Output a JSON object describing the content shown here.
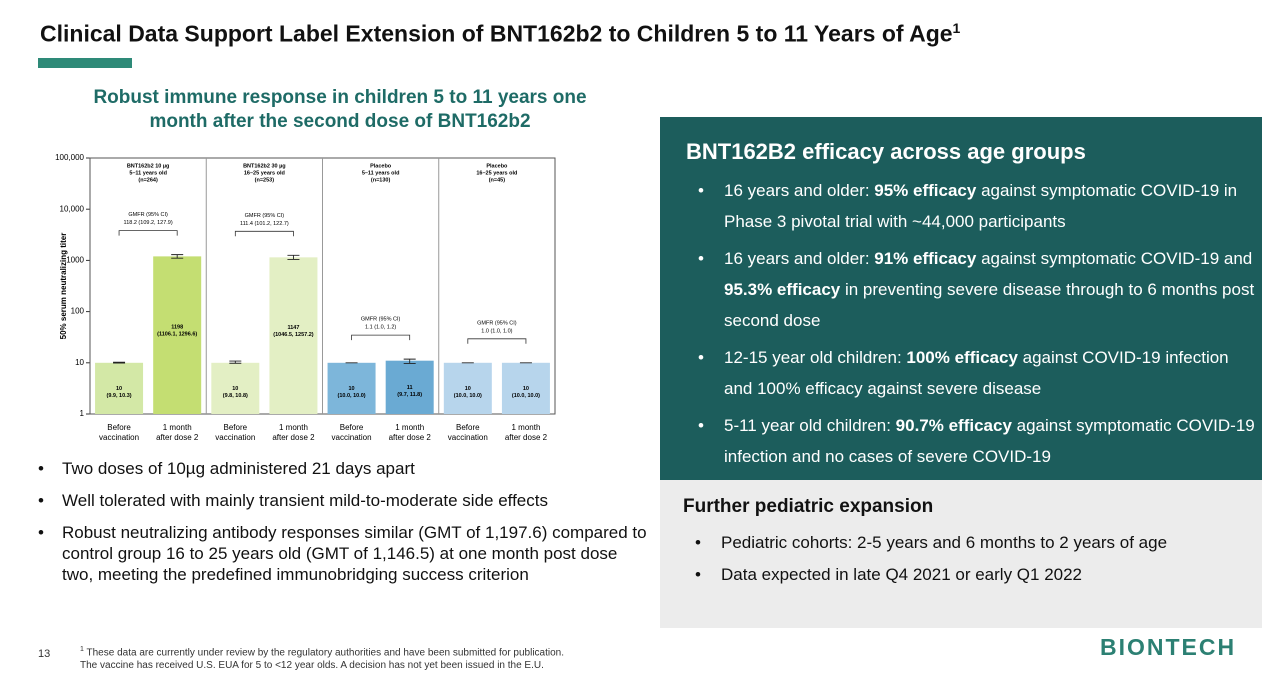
{
  "header": {
    "title": "Clinical Data Support Label Extension of BNT162b2 to Children 5 to 11 Years of Age",
    "title_sup": "1"
  },
  "left": {
    "subtitle": [
      "Robust immune response in children 5 to 11 years one",
      "month after the second dose of BNT162b2"
    ],
    "bullets": [
      "Two doses of 10µg administered 21 days apart",
      "Well tolerated with mainly transient mild-to-moderate side effects",
      "Robust neutralizing antibody responses similar (GMT of 1,197.6) compared to control group 16 to 25 years old (GMT of 1,146.5) at one month post dose two, meeting the predefined immunobridging success criterion"
    ]
  },
  "chart_data": {
    "type": "bar",
    "y_label": "50% serum neutralizing titer",
    "log_scale": true,
    "ylim": [
      1,
      100000
    ],
    "yticks": [
      1,
      10,
      100,
      1000,
      {
        "value": 10000,
        "label": "10,000"
      },
      {
        "value": 100000,
        "label": "100,000"
      }
    ],
    "panels": [
      {
        "title": [
          "BNT162b2 10 µg",
          "5–11 years old",
          "(n=264)"
        ],
        "gmfr": [
          "GMFR (95% CI)",
          "118.2 (109.2, 127.9)"
        ]
      },
      {
        "title": [
          "BNT162b2 30 µg",
          "16–25 years old",
          "(n=253)"
        ],
        "gmfr": [
          "GMFR (95% CI)",
          "111.4 (101.2, 122.7)"
        ]
      },
      {
        "title": [
          "Placebo",
          "5–11 years old",
          "(n=130)"
        ],
        "gmfr": [
          "GMFR (95% CI)",
          "1.1 (1.0, 1.2)"
        ]
      },
      {
        "title": [
          "Placebo",
          "16–25 years old",
          "(n=45)"
        ],
        "gmfr": [
          "GMFR (95% CI)",
          "1.0 (1.0, 1.0)"
        ]
      }
    ],
    "categories": [
      [
        "Before",
        "vaccination"
      ],
      [
        "1 month",
        "after dose 2"
      ],
      [
        "Before",
        "vaccination"
      ],
      [
        "1 month",
        "after dose 2"
      ],
      [
        "Before",
        "vaccination"
      ],
      [
        "1 month",
        "after dose 2"
      ],
      [
        "Before",
        "vaccination"
      ],
      [
        "1 month",
        "after dose 2"
      ]
    ],
    "values": [
      10,
      1198,
      10,
      1147,
      10,
      11,
      10,
      10
    ],
    "ci_labels": [
      "(9.9, 10.3)",
      "(1106.1, 1296.6)",
      "(9.8, 10.8)",
      "(1046.5, 1257.2)",
      "(10.0, 10.0)",
      "(9.7, 11.8)",
      "(10.0, 10.0)",
      "(10.0, 10.0)"
    ],
    "ci_low": [
      9.9,
      1106.1,
      9.8,
      1046.5,
      10.0,
      9.7,
      10.0,
      10.0
    ],
    "ci_high": [
      10.3,
      1296.6,
      10.8,
      1257.2,
      10.0,
      11.8,
      10.0,
      10.0
    ],
    "colors": [
      "#d3e8a6",
      "#c4de72",
      "#e3efc4",
      "#e3efc4",
      "#7db6da",
      "#6aaad3",
      "#b7d5ec",
      "#b7d5ec"
    ]
  },
  "right": {
    "heading": "BNT162B2 efficacy across age groups",
    "bullets": [
      [
        "16 years and older: ",
        "95% efficacy",
        " against symptomatic COVID-19 in Phase 3 pivotal trial with ~44,000 participants"
      ],
      [
        "16 years and older: ",
        "91% efficacy",
        " against symptomatic COVID-19 and ",
        "95.3% efficacy",
        " in preventing severe disease through to 6 months post second dose"
      ],
      [
        "12-15 year old children: ",
        "100% efficacy",
        " against COVID-19 infection and 100% efficacy against severe disease"
      ],
      [
        "5-11 year old children: ",
        "90.7% efficacy",
        " against symptomatic COVID-19 infection and no cases of severe COVID-19"
      ]
    ],
    "further_heading": "Further pediatric expansion",
    "further_bullets": [
      "Pediatric cohorts: 2-5 years and 6 months to 2 years of age",
      "Data expected in late Q4 2021 or early Q1 2022"
    ]
  },
  "footer": {
    "page": "13",
    "footnote_sup": "1",
    "footnote": [
      "These data are currently under review by the regulatory authorities and have been submitted for publication.",
      "The vaccine has received U.S. EUA for 5 to <12 year olds. A decision has not yet been issued in the E.U."
    ],
    "logo": "BIONTECH"
  }
}
